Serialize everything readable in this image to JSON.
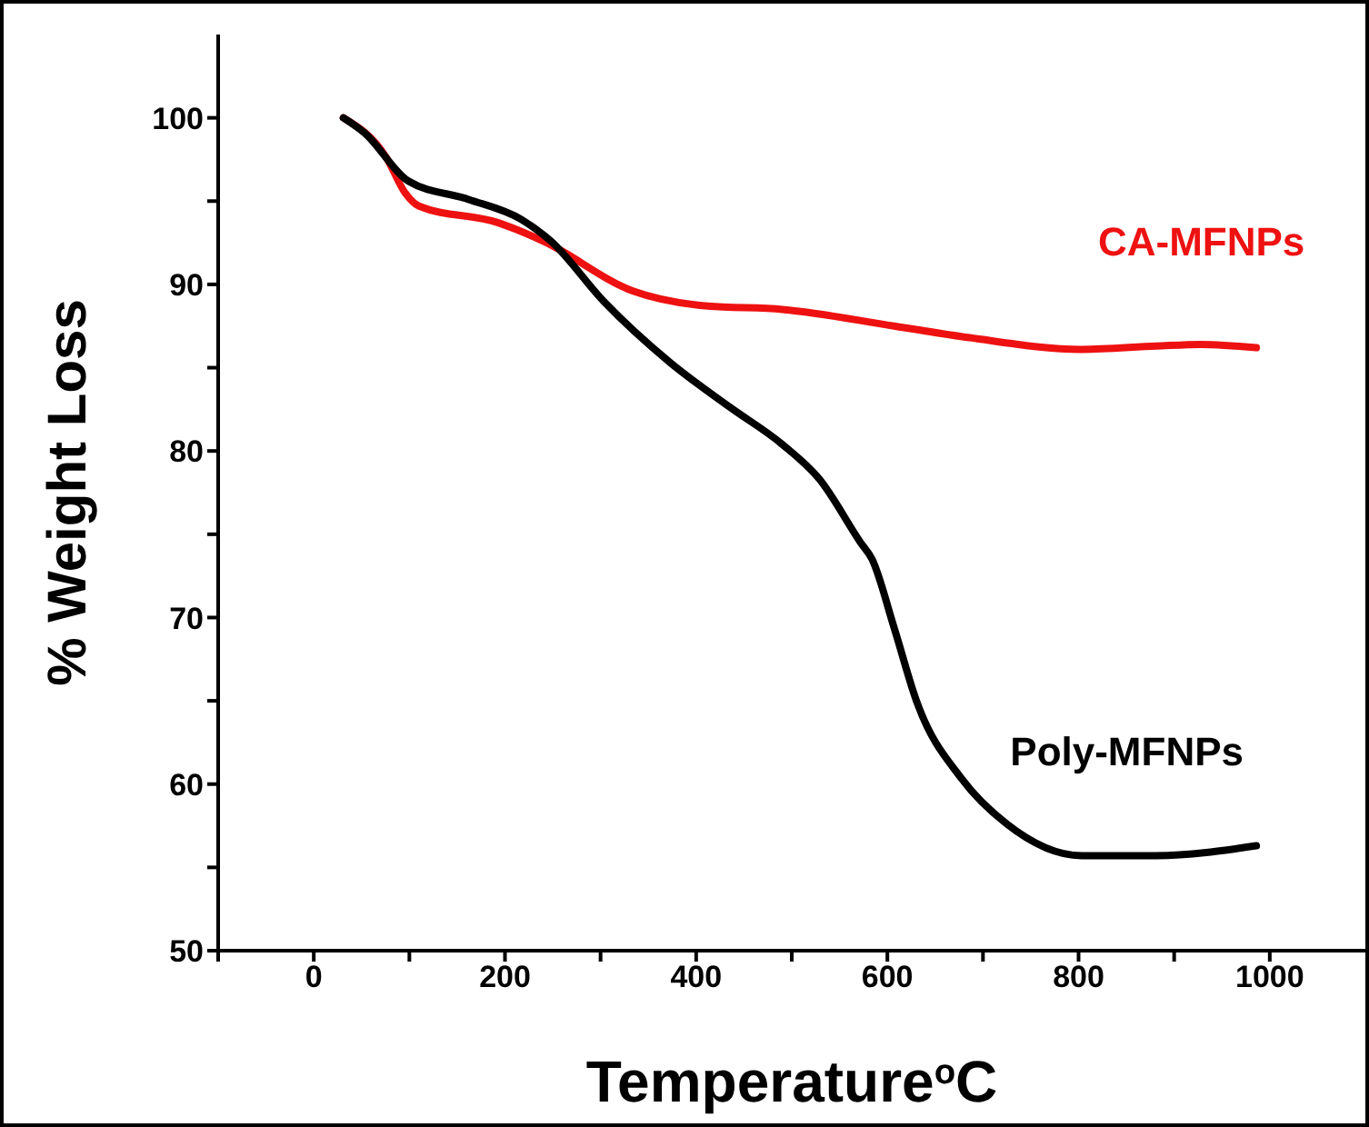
{
  "chart_data": {
    "type": "line",
    "xlabel": "Temperature$^{o}$C",
    "ylabel": "% Weight Loss",
    "xlim": [
      -100,
      1100
    ],
    "xticks": [
      {
        "value": -100,
        "label": null
      },
      0,
      {
        "value": 100,
        "label": null
      },
      200,
      {
        "value": 300,
        "label": null
      },
      400,
      {
        "value": 500,
        "label": null
      },
      600,
      {
        "value": 700,
        "label": null
      },
      800,
      {
        "value": 900,
        "label": null
      },
      1000
    ],
    "ylim": [
      50,
      105
    ],
    "yticks": [
      50,
      {
        "value": 55,
        "label": null
      },
      60,
      {
        "value": 65,
        "label": null
      },
      70,
      {
        "value": 75,
        "label": null
      },
      80,
      {
        "value": 85,
        "label": null
      },
      90,
      {
        "value": 95,
        "label": null
      },
      100
    ],
    "grid": false,
    "legend": false,
    "marker": "none",
    "line_style": "solid",
    "series": [
      {
        "name": "CA-MFNPs",
        "color": "#ee1111",
        "x": [
          31,
          76,
          95.5,
          110,
          193,
          240,
          334,
          412,
          490,
          607,
          686,
          803,
          881,
          928,
          986
        ],
        "values": [
          100,
          97.6,
          95.5,
          94.7,
          93.7,
          92.6,
          89.6,
          88.7,
          88.5,
          87.5,
          86.8,
          86.1,
          86.3,
          86.4,
          86.2
        ]
      },
      {
        "name": "Poly-MFNPs",
        "color": "#000000",
        "x": [
          31,
          53,
          99,
          162,
          217,
          248,
          303,
          373,
          436,
          490,
          529,
          572,
          584,
          607,
          631,
          678,
          725,
          803,
          881,
          986
        ],
        "values": [
          100,
          99.1,
          96.2,
          95.1,
          93.9,
          92.6,
          89,
          85.3,
          82.6,
          80.4,
          78.3,
          74.5,
          73.5,
          69.4,
          64.9,
          60.3,
          57.6,
          55.7,
          55.7,
          56.3
        ]
      }
    ]
  }
}
